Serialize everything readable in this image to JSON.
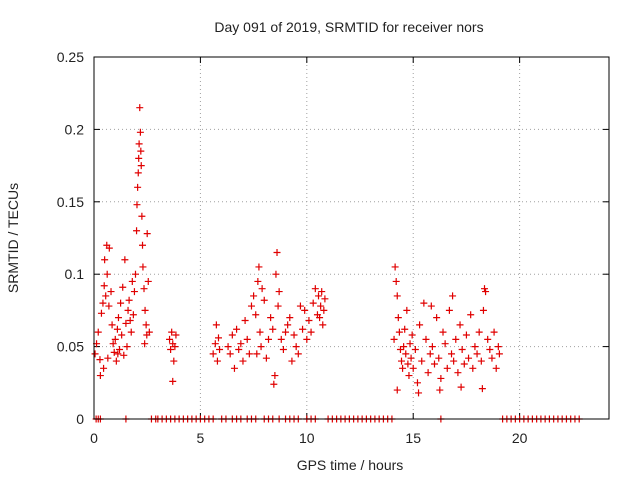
{
  "chart_data": {
    "type": "scatter",
    "title": "Day 091 of 2019, SRMTID for receiver nors",
    "xlabel": "GPS time / hours",
    "ylabel": "SRMTID / TECUs",
    "xlim": [
      0,
      24.2
    ],
    "ylim": [
      0,
      0.25
    ],
    "xticks": [
      0,
      5,
      10,
      15,
      20
    ],
    "xtick_labels": [
      "0",
      "5",
      "10",
      "15",
      "20"
    ],
    "yticks": [
      0,
      0.05,
      0.1,
      0.15,
      0.2,
      0.25
    ],
    "ytick_labels": [
      "0",
      "0.05",
      "0.1",
      "0.15",
      "0.2",
      "0.25"
    ],
    "grid": true,
    "marker": "+",
    "color": "#e00000",
    "series": [
      {
        "name": "SRMTID",
        "points": [
          [
            0.05,
            0.045
          ],
          [
            0.12,
            0.052
          ],
          [
            0.2,
            0.06
          ],
          [
            0.28,
            0.041
          ],
          [
            0.35,
            0.073
          ],
          [
            0.42,
            0.08
          ],
          [
            0.48,
            0.092
          ],
          [
            0.5,
            0.11
          ],
          [
            0.55,
            0.085
          ],
          [
            0.6,
            0.12
          ],
          [
            0.62,
            0.1
          ],
          [
            0.7,
            0.078
          ],
          [
            0.72,
            0.118
          ],
          [
            0.8,
            0.088
          ],
          [
            0.85,
            0.065
          ],
          [
            0.9,
            0.052
          ],
          [
            0.95,
            0.046
          ],
          [
            1.0,
            0.055
          ],
          [
            1.05,
            0.04
          ],
          [
            1.1,
            0.062
          ],
          [
            1.15,
            0.07
          ],
          [
            1.2,
            0.048
          ],
          [
            1.25,
            0.08
          ],
          [
            1.3,
            0.058
          ],
          [
            1.35,
            0.091
          ],
          [
            1.4,
            0.044
          ],
          [
            1.45,
            0.11
          ],
          [
            1.5,
            0.066
          ],
          [
            1.55,
            0.05
          ],
          [
            1.6,
            0.075
          ],
          [
            1.65,
            0.082
          ],
          [
            1.7,
            0.068
          ],
          [
            1.75,
            0.06
          ],
          [
            1.8,
            0.095
          ],
          [
            1.85,
            0.072
          ],
          [
            1.9,
            0.088
          ],
          [
            1.95,
            0.1
          ],
          [
            2.0,
            0.13
          ],
          [
            2.02,
            0.148
          ],
          [
            2.05,
            0.16
          ],
          [
            2.08,
            0.17
          ],
          [
            2.1,
            0.18
          ],
          [
            2.12,
            0.19
          ],
          [
            2.15,
            0.215
          ],
          [
            2.18,
            0.198
          ],
          [
            2.2,
            0.185
          ],
          [
            2.22,
            0.175
          ],
          [
            2.25,
            0.14
          ],
          [
            2.28,
            0.12
          ],
          [
            2.3,
            0.105
          ],
          [
            2.35,
            0.09
          ],
          [
            2.4,
            0.075
          ],
          [
            2.45,
            0.065
          ],
          [
            2.5,
            0.128
          ],
          [
            2.55,
            0.095
          ],
          [
            2.6,
            0.06
          ],
          [
            0.3,
            0.03
          ],
          [
            0.45,
            0.035
          ],
          [
            0.65,
            0.042
          ],
          [
            1.12,
            0.045
          ],
          [
            2.38,
            0.052
          ],
          [
            2.48,
            0.058
          ],
          [
            3.55,
            0.055
          ],
          [
            3.6,
            0.048
          ],
          [
            3.65,
            0.06
          ],
          [
            3.7,
            0.052
          ],
          [
            3.75,
            0.04
          ],
          [
            3.8,
            0.05
          ],
          [
            3.85,
            0.058
          ],
          [
            3.7,
            0.026
          ],
          [
            5.6,
            0.045
          ],
          [
            5.7,
            0.052
          ],
          [
            5.75,
            0.065
          ],
          [
            5.8,
            0.04
          ],
          [
            5.85,
            0.056
          ],
          [
            5.9,
            0.048
          ],
          [
            6.3,
            0.05
          ],
          [
            6.4,
            0.045
          ],
          [
            6.5,
            0.058
          ],
          [
            6.6,
            0.035
          ],
          [
            6.7,
            0.062
          ],
          [
            6.8,
            0.048
          ],
          [
            6.9,
            0.052
          ],
          [
            7.0,
            0.04
          ],
          [
            7.1,
            0.068
          ],
          [
            7.2,
            0.055
          ],
          [
            7.3,
            0.045
          ],
          [
            7.4,
            0.078
          ],
          [
            7.5,
            0.085
          ],
          [
            7.6,
            0.072
          ],
          [
            7.7,
            0.095
          ],
          [
            7.75,
            0.105
          ],
          [
            7.8,
            0.06
          ],
          [
            7.85,
            0.05
          ],
          [
            7.9,
            0.09
          ],
          [
            8.0,
            0.082
          ],
          [
            8.1,
            0.042
          ],
          [
            8.2,
            0.055
          ],
          [
            8.3,
            0.07
          ],
          [
            8.4,
            0.062
          ],
          [
            8.5,
            0.03
          ],
          [
            8.55,
            0.1
          ],
          [
            8.6,
            0.115
          ],
          [
            8.65,
            0.078
          ],
          [
            8.7,
            0.088
          ],
          [
            8.8,
            0.055
          ],
          [
            8.9,
            0.048
          ],
          [
            9.0,
            0.06
          ],
          [
            9.1,
            0.065
          ],
          [
            9.2,
            0.07
          ],
          [
            9.3,
            0.04
          ],
          [
            9.4,
            0.058
          ],
          [
            9.5,
            0.05
          ],
          [
            9.6,
            0.045
          ],
          [
            9.7,
            0.078
          ],
          [
            9.8,
            0.062
          ],
          [
            9.9,
            0.075
          ],
          [
            10.0,
            0.055
          ],
          [
            10.1,
            0.068
          ],
          [
            10.2,
            0.06
          ],
          [
            10.3,
            0.08
          ],
          [
            10.4,
            0.09
          ],
          [
            10.5,
            0.072
          ],
          [
            10.55,
            0.085
          ],
          [
            10.6,
            0.07
          ],
          [
            10.65,
            0.078
          ],
          [
            10.7,
            0.088
          ],
          [
            10.75,
            0.065
          ],
          [
            10.8,
            0.075
          ],
          [
            10.85,
            0.083
          ],
          [
            8.45,
            0.024
          ],
          [
            7.65,
            0.045
          ],
          [
            14.1,
            0.055
          ],
          [
            14.15,
            0.105
          ],
          [
            14.2,
            0.095
          ],
          [
            14.25,
            0.085
          ],
          [
            14.3,
            0.07
          ],
          [
            14.35,
            0.06
          ],
          [
            14.4,
            0.048
          ],
          [
            14.45,
            0.04
          ],
          [
            14.5,
            0.035
          ],
          [
            14.55,
            0.05
          ],
          [
            14.6,
            0.062
          ],
          [
            14.65,
            0.045
          ],
          [
            14.7,
            0.075
          ],
          [
            14.75,
            0.038
          ],
          [
            14.8,
            0.03
          ],
          [
            14.85,
            0.052
          ],
          [
            14.9,
            0.042
          ],
          [
            14.95,
            0.058
          ],
          [
            15.0,
            0.035
          ],
          [
            15.1,
            0.048
          ],
          [
            15.2,
            0.025
          ],
          [
            15.3,
            0.065
          ],
          [
            15.4,
            0.04
          ],
          [
            15.5,
            0.08
          ],
          [
            15.6,
            0.055
          ],
          [
            15.7,
            0.032
          ],
          [
            15.8,
            0.045
          ],
          [
            15.9,
            0.05
          ],
          [
            16.0,
            0.038
          ],
          [
            16.1,
            0.07
          ],
          [
            16.2,
            0.042
          ],
          [
            16.3,
            0.028
          ],
          [
            16.4,
            0.06
          ],
          [
            16.5,
            0.052
          ],
          [
            16.6,
            0.035
          ],
          [
            16.7,
            0.075
          ],
          [
            16.8,
            0.045
          ],
          [
            16.9,
            0.04
          ],
          [
            17.0,
            0.055
          ],
          [
            17.1,
            0.032
          ],
          [
            17.2,
            0.065
          ],
          [
            17.3,
            0.048
          ],
          [
            17.4,
            0.038
          ],
          [
            17.5,
            0.058
          ],
          [
            17.6,
            0.042
          ],
          [
            17.7,
            0.072
          ],
          [
            17.8,
            0.035
          ],
          [
            17.9,
            0.05
          ],
          [
            18.0,
            0.045
          ],
          [
            18.1,
            0.06
          ],
          [
            18.2,
            0.04
          ],
          [
            18.3,
            0.075
          ],
          [
            18.35,
            0.09
          ],
          [
            18.4,
            0.088
          ],
          [
            18.5,
            0.055
          ],
          [
            18.6,
            0.048
          ],
          [
            18.7,
            0.042
          ],
          [
            18.8,
            0.06
          ],
          [
            18.9,
            0.035
          ],
          [
            19.0,
            0.05
          ],
          [
            19.05,
            0.045
          ],
          [
            14.25,
            0.02
          ],
          [
            15.25,
            0.018
          ],
          [
            16.25,
            0.02
          ],
          [
            17.25,
            0.022
          ],
          [
            18.25,
            0.021
          ],
          [
            16.85,
            0.085
          ],
          [
            15.85,
            0.078
          ],
          [
            0.1,
            0
          ],
          [
            0.2,
            0
          ],
          [
            0.3,
            0
          ],
          [
            1.5,
            0
          ],
          [
            2.7,
            0
          ],
          [
            2.9,
            0
          ],
          [
            3.0,
            0
          ],
          [
            3.2,
            0
          ],
          [
            3.4,
            0
          ],
          [
            3.6,
            0
          ],
          [
            3.8,
            0
          ],
          [
            4.0,
            0
          ],
          [
            4.2,
            0
          ],
          [
            4.4,
            0
          ],
          [
            4.6,
            0
          ],
          [
            4.8,
            0
          ],
          [
            5.0,
            0
          ],
          [
            5.2,
            0
          ],
          [
            5.4,
            0
          ],
          [
            5.6,
            0
          ],
          [
            6.0,
            0
          ],
          [
            6.2,
            0
          ],
          [
            6.5,
            0
          ],
          [
            6.7,
            0
          ],
          [
            6.9,
            0
          ],
          [
            7.2,
            0
          ],
          [
            7.4,
            0
          ],
          [
            7.6,
            0
          ],
          [
            8.0,
            0
          ],
          [
            8.2,
            0
          ],
          [
            8.4,
            0
          ],
          [
            8.7,
            0
          ],
          [
            9.0,
            0
          ],
          [
            9.2,
            0
          ],
          [
            9.4,
            0
          ],
          [
            9.6,
            0
          ],
          [
            10.0,
            0
          ],
          [
            10.2,
            0
          ],
          [
            10.4,
            0
          ],
          [
            11.0,
            0
          ],
          [
            11.2,
            0
          ],
          [
            11.4,
            0
          ],
          [
            11.6,
            0
          ],
          [
            11.8,
            0
          ],
          [
            12.0,
            0
          ],
          [
            12.2,
            0
          ],
          [
            12.4,
            0
          ],
          [
            12.6,
            0
          ],
          [
            12.8,
            0
          ],
          [
            13.0,
            0
          ],
          [
            13.2,
            0
          ],
          [
            13.4,
            0
          ],
          [
            13.6,
            0
          ],
          [
            13.8,
            0
          ],
          [
            14.0,
            0
          ],
          [
            16.3,
            0
          ],
          [
            19.2,
            0
          ],
          [
            19.4,
            0
          ],
          [
            19.6,
            0
          ],
          [
            19.8,
            0
          ],
          [
            20.0,
            0
          ],
          [
            20.2,
            0
          ],
          [
            20.4,
            0
          ],
          [
            20.6,
            0
          ],
          [
            20.8,
            0
          ],
          [
            21.0,
            0
          ],
          [
            21.2,
            0
          ],
          [
            21.4,
            0
          ],
          [
            21.6,
            0
          ],
          [
            21.8,
            0
          ],
          [
            22.0,
            0
          ],
          [
            22.2,
            0
          ],
          [
            22.4,
            0
          ],
          [
            22.6,
            0
          ],
          [
            22.8,
            0
          ]
        ]
      }
    ]
  }
}
